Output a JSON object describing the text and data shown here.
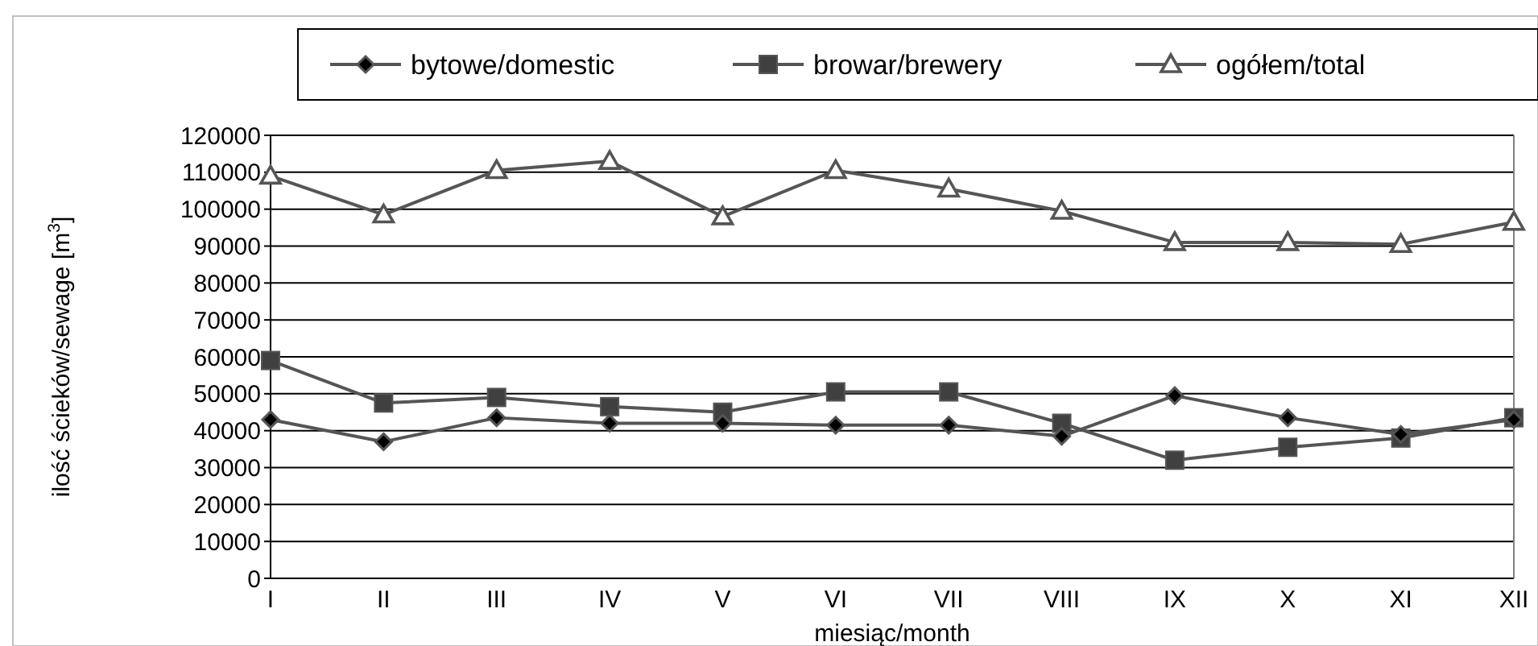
{
  "chart_data": {
    "type": "line",
    "xlabel": "miesiąc/month",
    "ylabel": "ilość ścieków/sewage [m$^{3}$]",
    "categories": [
      "I",
      "II",
      "III",
      "IV",
      "V",
      "VI",
      "VII",
      "VIII",
      "IX",
      "X",
      "XI",
      "XII"
    ],
    "series": [
      {
        "name": "bytowe/domestic",
        "color": "#000000",
        "marker": "diamond",
        "values": [
          43000,
          37000,
          43500,
          42000,
          42000,
          41500,
          41500,
          38500,
          49500,
          43500,
          39000,
          43000
        ]
      },
      {
        "name": "browar/brewery",
        "color": "#404040",
        "marker": "square",
        "values": [
          59000,
          47500,
          49000,
          46500,
          45000,
          50500,
          50500,
          42000,
          32000,
          35500,
          38000,
          43500
        ]
      },
      {
        "name": "ogółem/total",
        "color": "#ffffff",
        "marker": "triangle",
        "values": [
          109000,
          98500,
          110500,
          113000,
          98000,
          110500,
          105500,
          99500,
          91000,
          91000,
          90500,
          96500
        ]
      }
    ],
    "ylim": [
      0,
      120000
    ],
    "yticks": [
      0,
      10000,
      20000,
      30000,
      40000,
      50000,
      60000,
      70000,
      80000,
      90000,
      100000,
      110000,
      120000
    ],
    "grid": "y",
    "legend": "top",
    "line_style": "solid"
  }
}
